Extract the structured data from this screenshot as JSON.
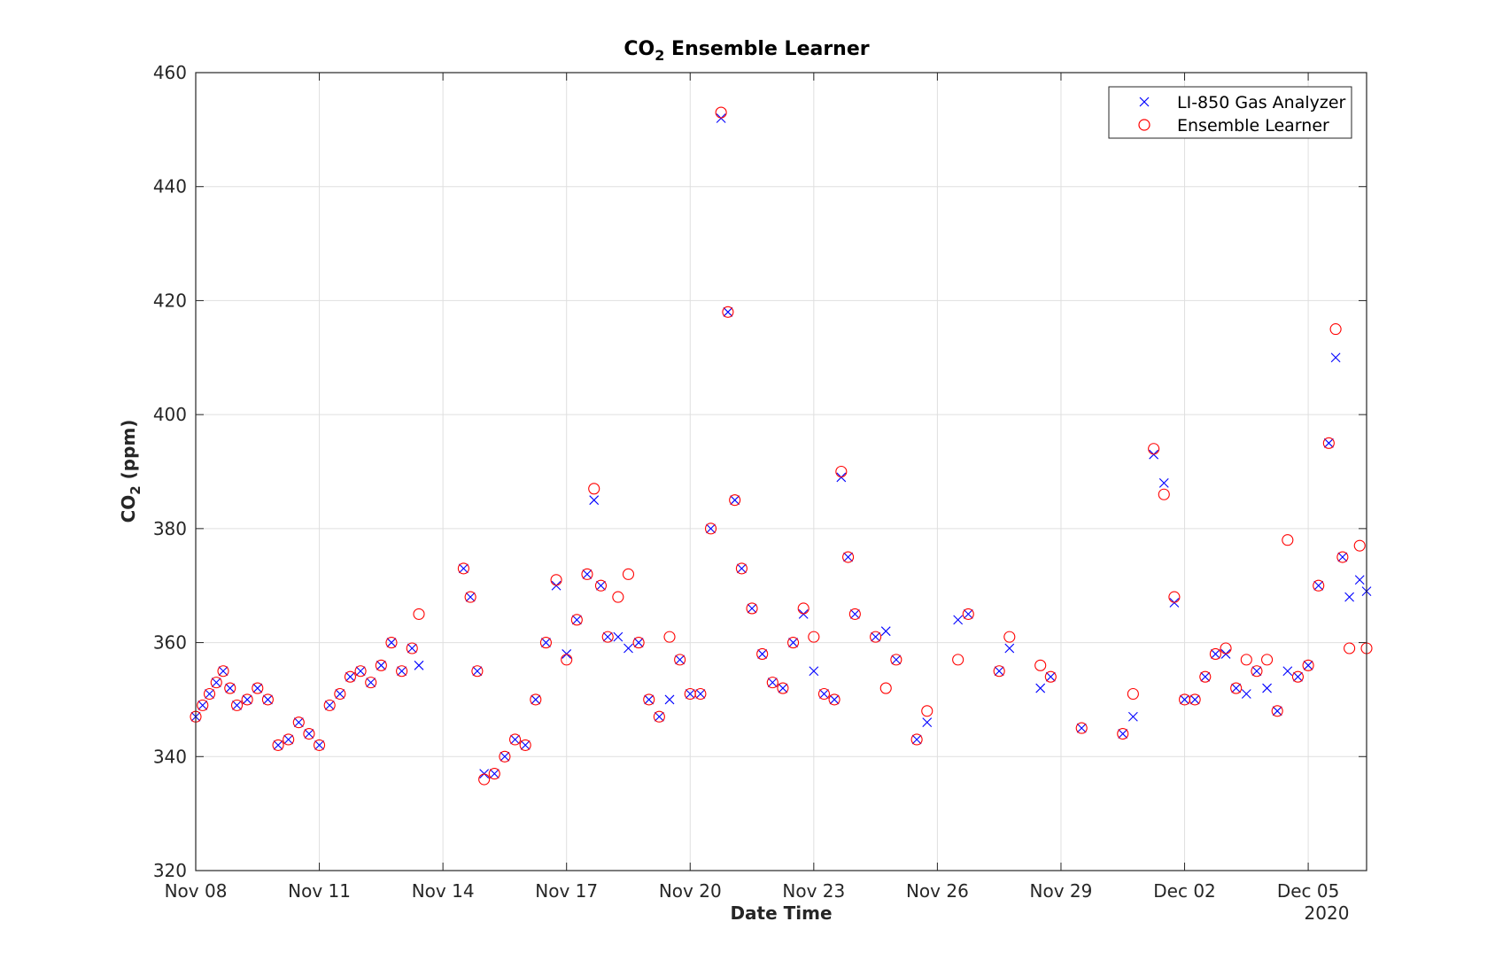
{
  "chart_data": {
    "type": "scatter",
    "title": "Ensemble Learner",
    "title_main": "CO",
    "title_sub": "2",
    "xlabel": "Date Time",
    "ylabel": "(ppm)",
    "ylabel_main": "CO",
    "ylabel_sub": "2",
    "xlim": [
      "2020-11-08",
      "2020-12-06 10:00"
    ],
    "ylim": [
      320,
      460
    ],
    "x_ticks": [
      "Nov 08",
      "Nov 11",
      "Nov 14",
      "Nov 17",
      "Nov 20",
      "Nov 23",
      "Nov 26",
      "Nov 29",
      "Dec 02",
      "Dec 05"
    ],
    "x_tick_dates": [
      "2020-11-08",
      "2020-11-11",
      "2020-11-14",
      "2020-11-17",
      "2020-11-20",
      "2020-11-23",
      "2020-11-26",
      "2020-11-29",
      "2020-12-02",
      "2020-12-05"
    ],
    "x_secondary_label": "2020",
    "y_ticks": [
      320,
      340,
      360,
      380,
      400,
      420,
      440,
      460
    ],
    "grid": true,
    "legend_position": "top-right",
    "series": [
      {
        "name": "LI-850 Gas Analyzer",
        "marker": "x",
        "color": "#0000ff",
        "points": [
          [
            "2020-11-08 00:00",
            347
          ],
          [
            "2020-11-08 04:00",
            349
          ],
          [
            "2020-11-08 08:00",
            351
          ],
          [
            "2020-11-08 12:00",
            353
          ],
          [
            "2020-11-08 16:00",
            355
          ],
          [
            "2020-11-08 20:00",
            352
          ],
          [
            "2020-11-09 00:00",
            349
          ],
          [
            "2020-11-09 06:00",
            350
          ],
          [
            "2020-11-09 12:00",
            352
          ],
          [
            "2020-11-09 18:00",
            350
          ],
          [
            "2020-11-10 00:00",
            342
          ],
          [
            "2020-11-10 06:00",
            343
          ],
          [
            "2020-11-10 12:00",
            346
          ],
          [
            "2020-11-10 18:00",
            344
          ],
          [
            "2020-11-11 00:00",
            342
          ],
          [
            "2020-11-11 06:00",
            349
          ],
          [
            "2020-11-11 12:00",
            351
          ],
          [
            "2020-11-11 18:00",
            354
          ],
          [
            "2020-11-12 00:00",
            355
          ],
          [
            "2020-11-12 06:00",
            353
          ],
          [
            "2020-11-12 12:00",
            356
          ],
          [
            "2020-11-12 18:00",
            360
          ],
          [
            "2020-11-13 00:00",
            355
          ],
          [
            "2020-11-13 06:00",
            359
          ],
          [
            "2020-11-13 10:00",
            356
          ],
          [
            "2020-11-14 12:00",
            373
          ],
          [
            "2020-11-14 16:00",
            368
          ],
          [
            "2020-11-14 20:00",
            355
          ],
          [
            "2020-11-15 00:00",
            337
          ],
          [
            "2020-11-15 06:00",
            337
          ],
          [
            "2020-11-15 12:00",
            340
          ],
          [
            "2020-11-15 18:00",
            343
          ],
          [
            "2020-11-16 00:00",
            342
          ],
          [
            "2020-11-16 06:00",
            350
          ],
          [
            "2020-11-16 12:00",
            360
          ],
          [
            "2020-11-16 18:00",
            370
          ],
          [
            "2020-11-17 00:00",
            358
          ],
          [
            "2020-11-17 06:00",
            364
          ],
          [
            "2020-11-17 12:00",
            372
          ],
          [
            "2020-11-17 16:00",
            385
          ],
          [
            "2020-11-17 20:00",
            370
          ],
          [
            "2020-11-18 00:00",
            361
          ],
          [
            "2020-11-18 06:00",
            361
          ],
          [
            "2020-11-18 12:00",
            359
          ],
          [
            "2020-11-18 18:00",
            360
          ],
          [
            "2020-11-19 00:00",
            350
          ],
          [
            "2020-11-19 06:00",
            347
          ],
          [
            "2020-11-19 12:00",
            350
          ],
          [
            "2020-11-19 18:00",
            357
          ],
          [
            "2020-11-20 00:00",
            351
          ],
          [
            "2020-11-20 06:00",
            351
          ],
          [
            "2020-11-20 12:00",
            380
          ],
          [
            "2020-11-20 18:00",
            452
          ],
          [
            "2020-11-20 22:00",
            418
          ],
          [
            "2020-11-21 02:00",
            385
          ],
          [
            "2020-11-21 06:00",
            373
          ],
          [
            "2020-11-21 12:00",
            366
          ],
          [
            "2020-11-21 18:00",
            358
          ],
          [
            "2020-11-22 00:00",
            353
          ],
          [
            "2020-11-22 06:00",
            352
          ],
          [
            "2020-11-22 12:00",
            360
          ],
          [
            "2020-11-22 18:00",
            365
          ],
          [
            "2020-11-23 00:00",
            355
          ],
          [
            "2020-11-23 06:00",
            351
          ],
          [
            "2020-11-23 12:00",
            350
          ],
          [
            "2020-11-23 16:00",
            389
          ],
          [
            "2020-11-23 20:00",
            375
          ],
          [
            "2020-11-24 00:00",
            365
          ],
          [
            "2020-11-24 12:00",
            361
          ],
          [
            "2020-11-24 18:00",
            362
          ],
          [
            "2020-11-25 00:00",
            357
          ],
          [
            "2020-11-25 12:00",
            343
          ],
          [
            "2020-11-25 18:00",
            346
          ],
          [
            "2020-11-26 12:00",
            364
          ],
          [
            "2020-11-26 18:00",
            365
          ],
          [
            "2020-11-27 12:00",
            355
          ],
          [
            "2020-11-27 18:00",
            359
          ],
          [
            "2020-11-28 12:00",
            352
          ],
          [
            "2020-11-28 18:00",
            354
          ],
          [
            "2020-11-29 12:00",
            345
          ],
          [
            "2020-11-30 12:00",
            344
          ],
          [
            "2020-11-30 18:00",
            347
          ],
          [
            "2020-12-01 06:00",
            393
          ],
          [
            "2020-12-01 12:00",
            388
          ],
          [
            "2020-12-01 18:00",
            367
          ],
          [
            "2020-12-02 00:00",
            350
          ],
          [
            "2020-12-02 06:00",
            350
          ],
          [
            "2020-12-02 12:00",
            354
          ],
          [
            "2020-12-02 18:00",
            358
          ],
          [
            "2020-12-03 00:00",
            358
          ],
          [
            "2020-12-03 06:00",
            352
          ],
          [
            "2020-12-03 12:00",
            351
          ],
          [
            "2020-12-03 18:00",
            355
          ],
          [
            "2020-12-04 00:00",
            352
          ],
          [
            "2020-12-04 06:00",
            348
          ],
          [
            "2020-12-04 12:00",
            355
          ],
          [
            "2020-12-04 18:00",
            354
          ],
          [
            "2020-12-05 00:00",
            356
          ],
          [
            "2020-12-05 06:00",
            370
          ],
          [
            "2020-12-05 12:00",
            395
          ],
          [
            "2020-12-05 16:00",
            410
          ],
          [
            "2020-12-05 20:00",
            375
          ],
          [
            "2020-12-06 00:00",
            368
          ],
          [
            "2020-12-06 06:00",
            371
          ],
          [
            "2020-12-06 10:00",
            369
          ]
        ]
      },
      {
        "name": "Ensemble Learner",
        "marker": "o",
        "color": "#ff0000",
        "points": [
          [
            "2020-11-08 00:00",
            347
          ],
          [
            "2020-11-08 04:00",
            349
          ],
          [
            "2020-11-08 08:00",
            351
          ],
          [
            "2020-11-08 12:00",
            353
          ],
          [
            "2020-11-08 16:00",
            355
          ],
          [
            "2020-11-08 20:00",
            352
          ],
          [
            "2020-11-09 00:00",
            349
          ],
          [
            "2020-11-09 06:00",
            350
          ],
          [
            "2020-11-09 12:00",
            352
          ],
          [
            "2020-11-09 18:00",
            350
          ],
          [
            "2020-11-10 00:00",
            342
          ],
          [
            "2020-11-10 06:00",
            343
          ],
          [
            "2020-11-10 12:00",
            346
          ],
          [
            "2020-11-10 18:00",
            344
          ],
          [
            "2020-11-11 00:00",
            342
          ],
          [
            "2020-11-11 06:00",
            349
          ],
          [
            "2020-11-11 12:00",
            351
          ],
          [
            "2020-11-11 18:00",
            354
          ],
          [
            "2020-11-12 00:00",
            355
          ],
          [
            "2020-11-12 06:00",
            353
          ],
          [
            "2020-11-12 12:00",
            356
          ],
          [
            "2020-11-12 18:00",
            360
          ],
          [
            "2020-11-13 00:00",
            355
          ],
          [
            "2020-11-13 06:00",
            359
          ],
          [
            "2020-11-13 10:00",
            365
          ],
          [
            "2020-11-14 12:00",
            373
          ],
          [
            "2020-11-14 16:00",
            368
          ],
          [
            "2020-11-14 20:00",
            355
          ],
          [
            "2020-11-15 00:00",
            336
          ],
          [
            "2020-11-15 06:00",
            337
          ],
          [
            "2020-11-15 12:00",
            340
          ],
          [
            "2020-11-15 18:00",
            343
          ],
          [
            "2020-11-16 00:00",
            342
          ],
          [
            "2020-11-16 06:00",
            350
          ],
          [
            "2020-11-16 12:00",
            360
          ],
          [
            "2020-11-16 18:00",
            371
          ],
          [
            "2020-11-17 00:00",
            357
          ],
          [
            "2020-11-17 06:00",
            364
          ],
          [
            "2020-11-17 12:00",
            372
          ],
          [
            "2020-11-17 16:00",
            387
          ],
          [
            "2020-11-17 20:00",
            370
          ],
          [
            "2020-11-18 00:00",
            361
          ],
          [
            "2020-11-18 06:00",
            368
          ],
          [
            "2020-11-18 12:00",
            372
          ],
          [
            "2020-11-18 18:00",
            360
          ],
          [
            "2020-11-19 00:00",
            350
          ],
          [
            "2020-11-19 06:00",
            347
          ],
          [
            "2020-11-19 12:00",
            361
          ],
          [
            "2020-11-19 18:00",
            357
          ],
          [
            "2020-11-20 00:00",
            351
          ],
          [
            "2020-11-20 06:00",
            351
          ],
          [
            "2020-11-20 12:00",
            380
          ],
          [
            "2020-11-20 18:00",
            453
          ],
          [
            "2020-11-20 22:00",
            418
          ],
          [
            "2020-11-21 02:00",
            385
          ],
          [
            "2020-11-21 06:00",
            373
          ],
          [
            "2020-11-21 12:00",
            366
          ],
          [
            "2020-11-21 18:00",
            358
          ],
          [
            "2020-11-22 00:00",
            353
          ],
          [
            "2020-11-22 06:00",
            352
          ],
          [
            "2020-11-22 12:00",
            360
          ],
          [
            "2020-11-22 18:00",
            366
          ],
          [
            "2020-11-23 00:00",
            361
          ],
          [
            "2020-11-23 06:00",
            351
          ],
          [
            "2020-11-23 12:00",
            350
          ],
          [
            "2020-11-23 16:00",
            390
          ],
          [
            "2020-11-23 20:00",
            375
          ],
          [
            "2020-11-24 00:00",
            365
          ],
          [
            "2020-11-24 12:00",
            361
          ],
          [
            "2020-11-24 18:00",
            352
          ],
          [
            "2020-11-25 00:00",
            357
          ],
          [
            "2020-11-25 12:00",
            343
          ],
          [
            "2020-11-25 18:00",
            348
          ],
          [
            "2020-11-26 12:00",
            357
          ],
          [
            "2020-11-26 18:00",
            365
          ],
          [
            "2020-11-27 12:00",
            355
          ],
          [
            "2020-11-27 18:00",
            361
          ],
          [
            "2020-11-28 12:00",
            356
          ],
          [
            "2020-11-28 18:00",
            354
          ],
          [
            "2020-11-29 12:00",
            345
          ],
          [
            "2020-11-30 12:00",
            344
          ],
          [
            "2020-11-30 18:00",
            351
          ],
          [
            "2020-12-01 06:00",
            394
          ],
          [
            "2020-12-01 12:00",
            386
          ],
          [
            "2020-12-01 18:00",
            368
          ],
          [
            "2020-12-02 00:00",
            350
          ],
          [
            "2020-12-02 06:00",
            350
          ],
          [
            "2020-12-02 12:00",
            354
          ],
          [
            "2020-12-02 18:00",
            358
          ],
          [
            "2020-12-03 00:00",
            359
          ],
          [
            "2020-12-03 06:00",
            352
          ],
          [
            "2020-12-03 12:00",
            357
          ],
          [
            "2020-12-03 18:00",
            355
          ],
          [
            "2020-12-04 00:00",
            357
          ],
          [
            "2020-12-04 06:00",
            348
          ],
          [
            "2020-12-04 12:00",
            378
          ],
          [
            "2020-12-04 18:00",
            354
          ],
          [
            "2020-12-05 00:00",
            356
          ],
          [
            "2020-12-05 06:00",
            370
          ],
          [
            "2020-12-05 12:00",
            395
          ],
          [
            "2020-12-05 16:00",
            415
          ],
          [
            "2020-12-05 20:00",
            375
          ],
          [
            "2020-12-06 00:00",
            359
          ],
          [
            "2020-12-06 06:00",
            377
          ],
          [
            "2020-12-06 10:00",
            359
          ]
        ]
      }
    ]
  }
}
